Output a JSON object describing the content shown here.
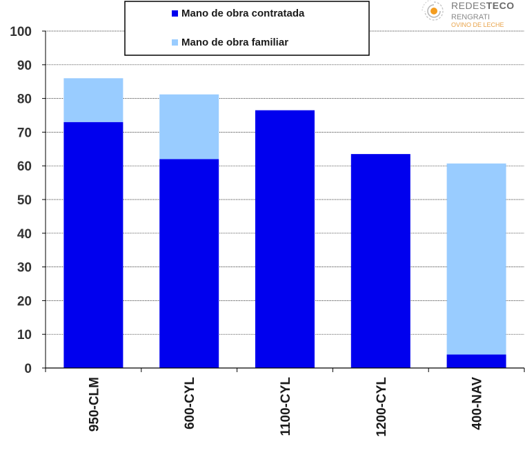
{
  "colors": {
    "contratada": "#0000ee",
    "familiar": "#99ccff",
    "grid": "#000000",
    "logo_orange": "#f39c1f"
  },
  "logo": {
    "brand_light": "REDES",
    "brand_bold": "TECO",
    "line2": "RENGRATI",
    "line3": "OVINO DE LECHE"
  },
  "chart_data": {
    "type": "bar",
    "stacked": true,
    "categories": [
      "950-CLM",
      "600-CYL",
      "1100-CYL",
      "1200-CYL",
      "400-NAV"
    ],
    "series": [
      {
        "name": "Mano de obra contratada",
        "values": [
          73,
          62,
          76.5,
          63.5,
          4
        ]
      },
      {
        "name": "Mano de obra familiar",
        "values": [
          13,
          19.2,
          0,
          0,
          56.7
        ]
      }
    ],
    "ylim": [
      0,
      100
    ],
    "yticks": [
      0,
      10,
      20,
      30,
      40,
      50,
      60,
      70,
      80,
      90,
      100
    ],
    "grid": true,
    "legend_position": "top-center"
  }
}
